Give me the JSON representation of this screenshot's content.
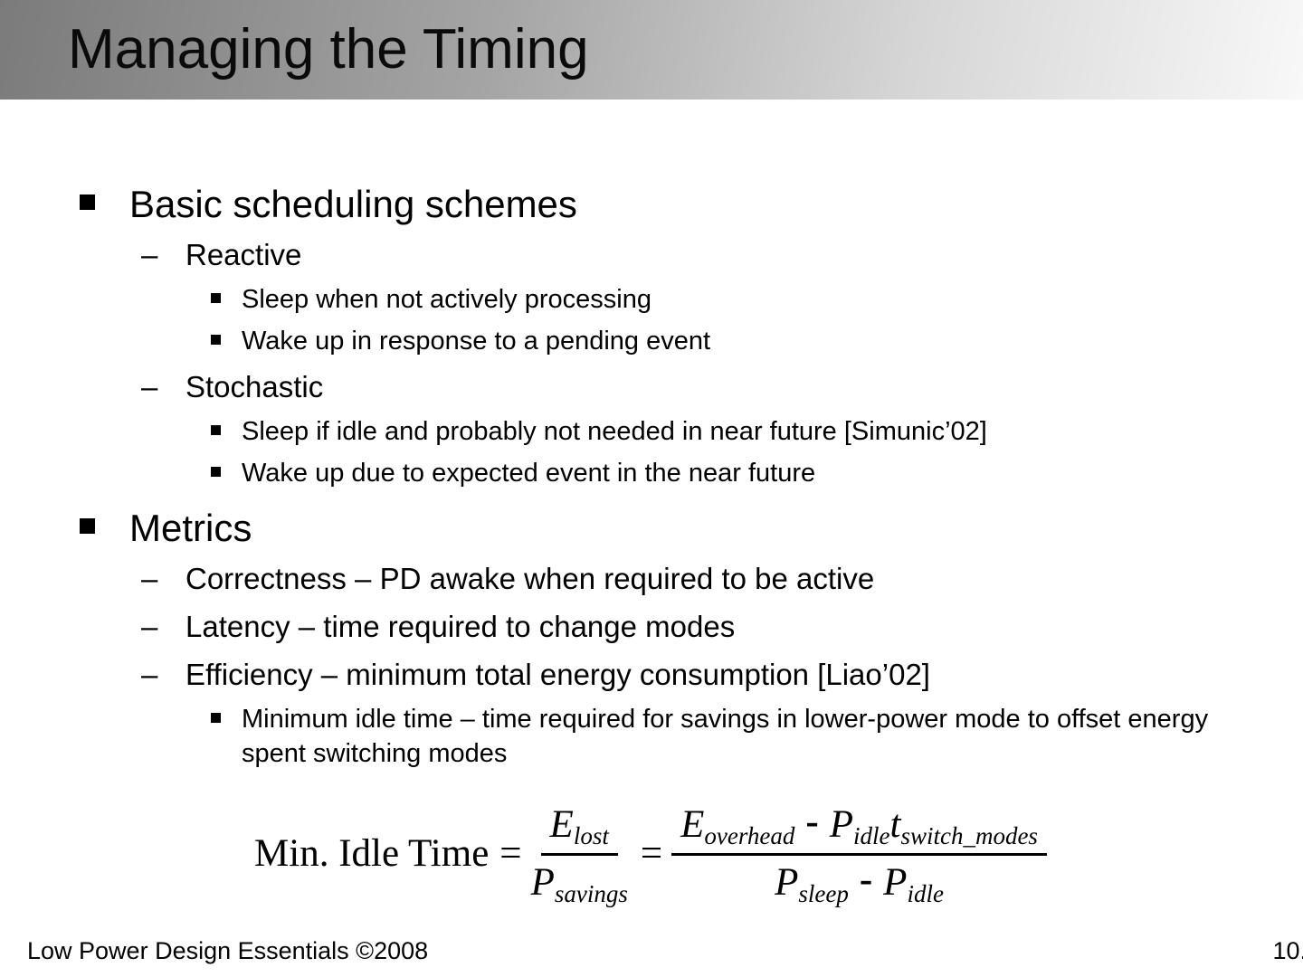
{
  "slide": {
    "title": "Managing the Timing",
    "markers": {
      "dash": "–"
    },
    "bullets": [
      {
        "level": 1,
        "text": "Basic scheduling schemes"
      },
      {
        "level": 2,
        "text": "Reactive"
      },
      {
        "level": 3,
        "text": "Sleep when not actively processing"
      },
      {
        "level": 3,
        "text": "Wake up in response to a pending event"
      },
      {
        "level": 2,
        "text": "Stochastic"
      },
      {
        "level": 3,
        "text": "Sleep if idle and probably not needed in near future [Simunic’02]"
      },
      {
        "level": 3,
        "text": "Wake up due to expected event in the near future"
      },
      {
        "level": 1,
        "text": "Metrics"
      },
      {
        "level": 2,
        "text": "Correctness – PD awake when required to be active"
      },
      {
        "level": 2,
        "text": "Latency – time required to change modes"
      },
      {
        "level": 2,
        "text": "Efficiency – minimum total energy consumption [Liao’02]"
      },
      {
        "level": 3,
        "text": "Minimum idle time – time required for savings in lower-power mode to offset energy spent switching modes"
      }
    ],
    "formula": {
      "label": "Min. Idle Time",
      "eq": "=",
      "minus": "-",
      "frac1": {
        "num": {
          "base": "E",
          "sub": "lost"
        },
        "den": {
          "base": "P",
          "sub": "savings"
        }
      },
      "frac2": {
        "num": {
          "t1": {
            "base": "E",
            "sub": "overhead"
          },
          "t2": {
            "base": "P",
            "sub": "idle"
          },
          "t3": {
            "base": "t",
            "sub": "switch_modes"
          }
        },
        "den": {
          "t1": {
            "base": "P",
            "sub": "sleep"
          },
          "t2": {
            "base": "P",
            "sub": "idle"
          }
        }
      }
    },
    "footer": {
      "left": "Low Power Design Essentials ©2008",
      "page": "10."
    },
    "colors": {
      "background": "#ffffff",
      "text": "#000000",
      "titlebar_dark": "#7b7b7b",
      "titlebar_light": "#f8f8f8"
    }
  }
}
